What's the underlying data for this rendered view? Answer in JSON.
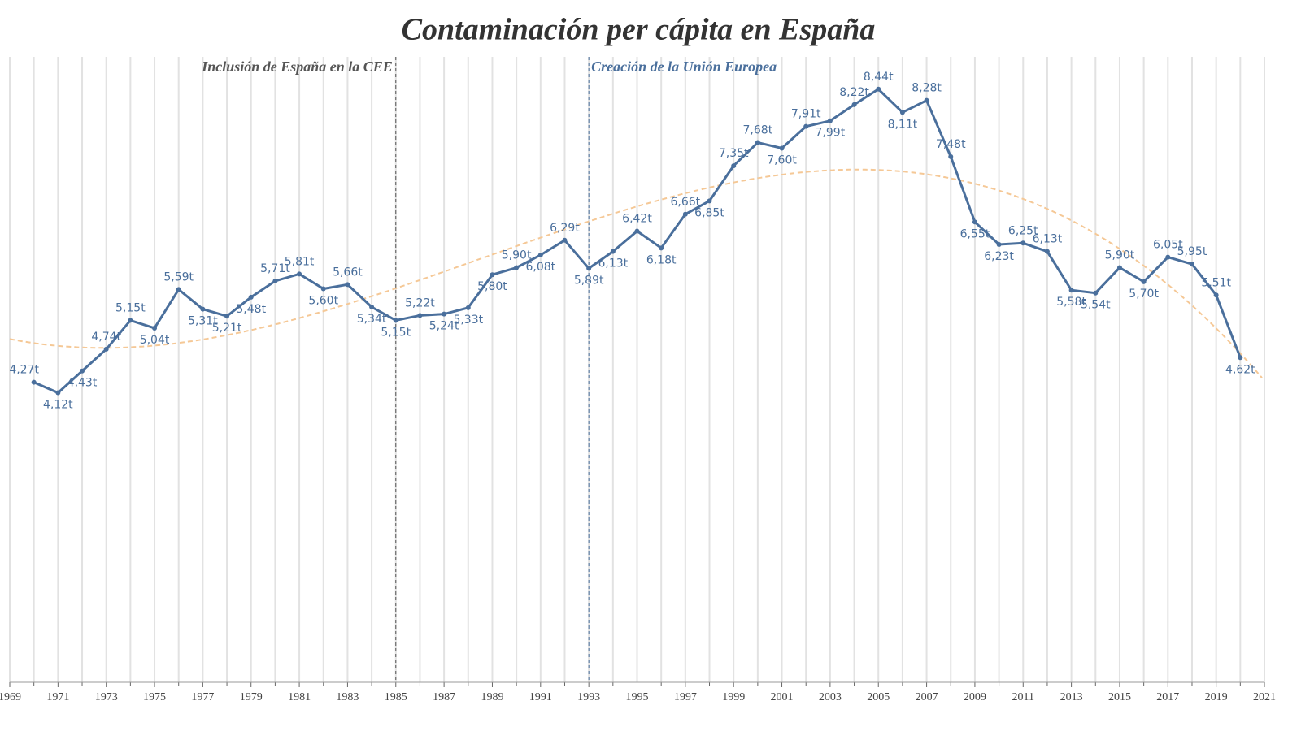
{
  "chart_data": {
    "type": "line",
    "title": "Contaminación per cápita en España",
    "x": [
      1970,
      1971,
      1972,
      1973,
      1974,
      1975,
      1976,
      1977,
      1978,
      1979,
      1980,
      1981,
      1982,
      1983,
      1984,
      1985,
      1986,
      1987,
      1988,
      1989,
      1990,
      1991,
      1992,
      1993,
      1994,
      1995,
      1996,
      1997,
      1998,
      1999,
      2000,
      2001,
      2002,
      2003,
      2004,
      2005,
      2006,
      2007,
      2008,
      2009,
      2010,
      2011,
      2012,
      2013,
      2014,
      2015,
      2016,
      2017,
      2018,
      2019,
      2020
    ],
    "values": [
      4.27,
      4.12,
      4.43,
      4.74,
      5.15,
      5.04,
      5.59,
      5.31,
      5.21,
      5.48,
      5.71,
      5.81,
      5.6,
      5.66,
      5.34,
      5.15,
      5.22,
      5.24,
      5.33,
      5.8,
      5.9,
      6.08,
      6.29,
      5.89,
      6.13,
      6.42,
      6.18,
      6.66,
      6.85,
      7.35,
      7.68,
      7.6,
      7.91,
      7.99,
      8.22,
      8.44,
      8.11,
      8.28,
      7.48,
      6.55,
      6.23,
      6.25,
      6.13,
      5.58,
      5.54,
      5.9,
      5.7,
      6.05,
      5.95,
      5.51,
      4.62
    ],
    "value_labels": [
      "4,27t",
      "4,12t",
      "4,43t",
      "4,74t",
      "5,15t",
      "5,04t",
      "5,59t",
      "5,31t",
      "5,21t",
      "5,48t",
      "5,71t",
      "5,81t",
      "5,60t",
      "5,66t",
      "5,34t",
      "5,15t",
      "5,22t",
      "5,24t",
      "5,33t",
      "5,80t",
      "5,90t",
      "6,08t",
      "6,29t",
      "5,89t",
      "6,13t",
      "6,42t",
      "6,18t",
      "6,66t",
      "6,85t",
      "7,35t",
      "7,68t",
      "7,60t",
      "7,91t",
      "7,99t",
      "8,22t",
      "8,44t",
      "8,11t",
      "8,28t",
      "7,48t",
      "6,55t",
      "6,23t",
      "6,25t",
      "6,13t",
      "5,58t",
      "5,54t",
      "5,90t",
      "5,70t",
      "6,05t",
      "5,95t",
      "5,51t",
      "4,62t"
    ],
    "color": "#4a6f9c",
    "trend_color": "#f5c896",
    "xlim": [
      1969,
      2021
    ],
    "xticks": [
      1969,
      1971,
      1973,
      1975,
      1977,
      1979,
      1981,
      1983,
      1985,
      1987,
      1989,
      1991,
      1993,
      1995,
      1997,
      1999,
      2001,
      2003,
      2005,
      2007,
      2009,
      2011,
      2013,
      2015,
      2017,
      2019,
      2021
    ],
    "ylim": [
      0,
      8.9
    ],
    "annotations": [
      {
        "text": "Inclusión de España en la CEE",
        "x": 1985,
        "color": "#555555"
      },
      {
        "text": "Creación de la Unión Europea",
        "x": 1993,
        "color": "#4a6f9c"
      }
    ]
  }
}
